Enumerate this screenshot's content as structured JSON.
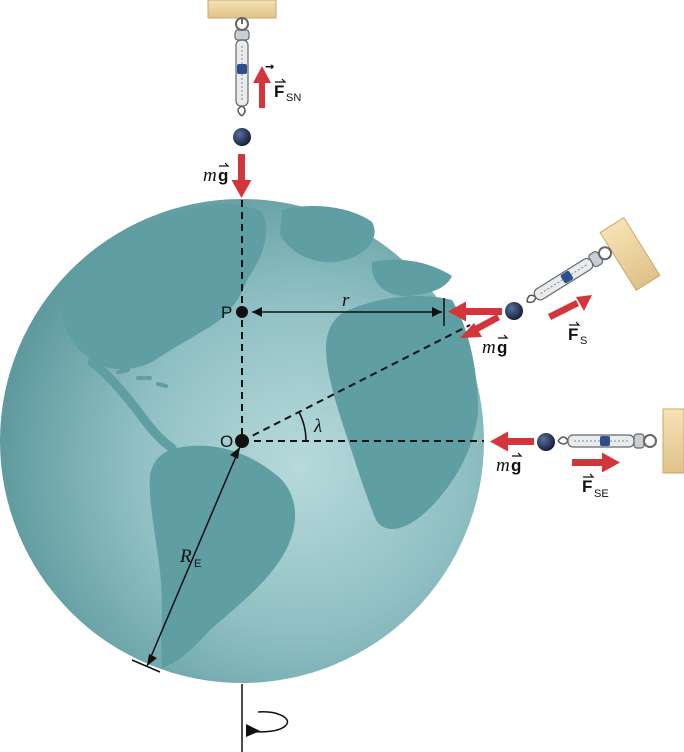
{
  "labels": {
    "point_p": "P",
    "point_o": "O",
    "radius_r": "r",
    "latitude": "λ",
    "earth_radius": "R",
    "earth_radius_sub": "E",
    "weight_m": "m",
    "weight_g": "g",
    "force_f": "F",
    "sub_sn": "SN",
    "sub_s": "S",
    "sub_se": "SE"
  },
  "colors": {
    "force_arrow": "#d2353a",
    "ocean": "#7fb5b9",
    "land": "#5a9ca0",
    "ceiling": "#f2d9a3",
    "mass": "#1e2f55"
  },
  "icons": {
    "rotation": "rotation-arrow-icon",
    "spring": "spring-scale-icon"
  }
}
